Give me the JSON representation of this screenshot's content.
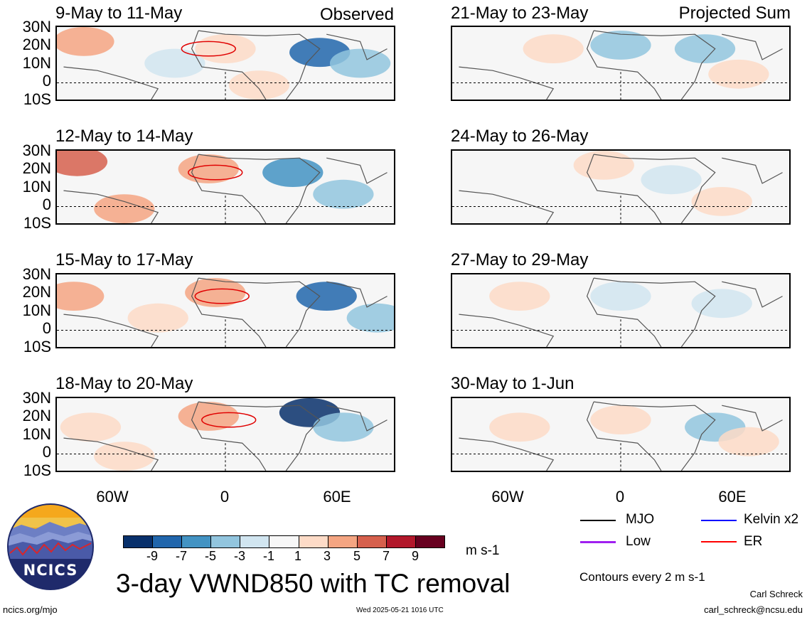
{
  "panels": {
    "left": [
      {
        "title": "9-May to 11-May",
        "label": "Observed"
      },
      {
        "title": "12-May to 14-May",
        "label": ""
      },
      {
        "title": "15-May to 17-May",
        "label": ""
      },
      {
        "title": "18-May to 20-May",
        "label": ""
      }
    ],
    "right": [
      {
        "title": "21-May to 23-May",
        "label": "Projected Sum"
      },
      {
        "title": "24-May to 26-May",
        "label": ""
      },
      {
        "title": "27-May to 29-May",
        "label": ""
      },
      {
        "title": "30-May to 1-Jun",
        "label": ""
      }
    ]
  },
  "lat_labels": [
    "30N",
    "20N",
    "10N",
    "0",
    "10S"
  ],
  "lon_labels": [
    "60W",
    "0",
    "60E"
  ],
  "colorbar": {
    "ticks": [
      "-9",
      "-7",
      "-5",
      "-3",
      "-1",
      "1",
      "3",
      "5",
      "7",
      "9"
    ],
    "colors": [
      "#08306b",
      "#2166ac",
      "#4393c3",
      "#92c5de",
      "#d1e5f0",
      "#f7f7f7",
      "#fddbc7",
      "#f4a582",
      "#d6604d",
      "#b2182b",
      "#67001f"
    ],
    "units": "m s-1"
  },
  "legend": {
    "items": [
      {
        "label": "MJO",
        "color": "#000000"
      },
      {
        "label": "Kelvin x2",
        "color": "#0000ff"
      },
      {
        "label": "Low",
        "color": "#a020f0"
      },
      {
        "label": "ER",
        "color": "#ff0000"
      }
    ],
    "contours_note": "Contours every 2 m s-1"
  },
  "main_title": "3-day VWND850 with TC removal",
  "logo_text": "NCICS",
  "footer": {
    "url": "ncics.org/mjo",
    "timestamp": "Wed 2025-05-21 1016 UTC",
    "author": "Carl Schreck",
    "email": "carl_schreck@ncsu.edu"
  }
}
